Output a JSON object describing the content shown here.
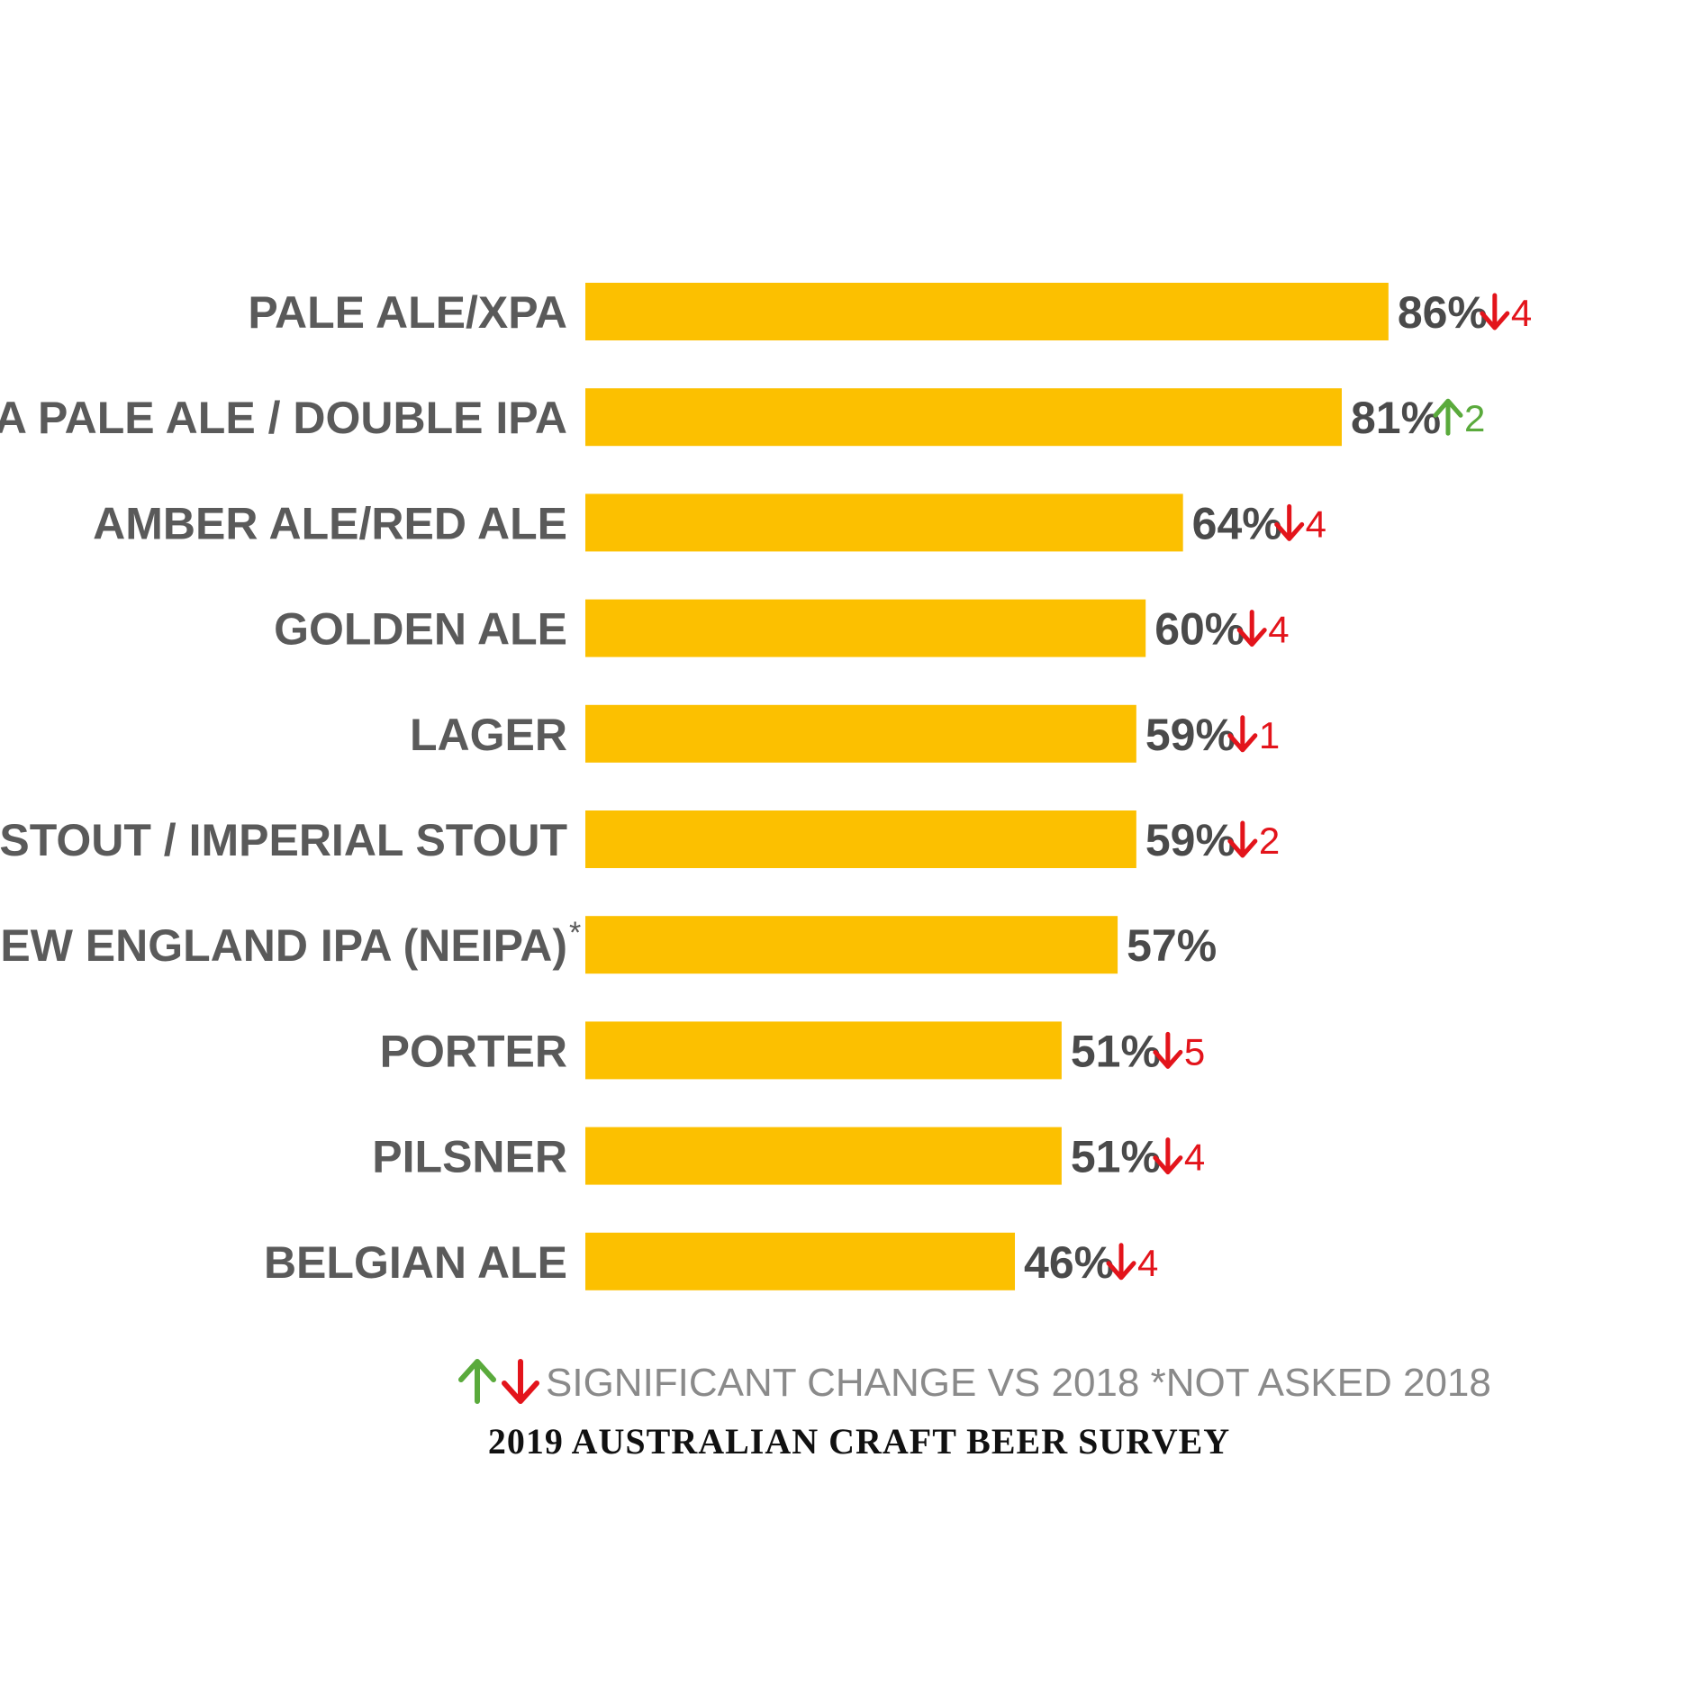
{
  "chart_data": {
    "type": "bar",
    "orientation": "horizontal",
    "categories": [
      "PALE ALE/XPA",
      "INDIA PALE ALE / DOUBLE IPA",
      "AMBER ALE/RED ALE",
      "GOLDEN ALE",
      "LAGER",
      "STOUT / IMPERIAL STOUT",
      "NEW ENGLAND IPA (NEIPA)",
      "PORTER",
      "PILSNER",
      "BELGIAN ALE"
    ],
    "values": [
      86,
      81,
      64,
      60,
      59,
      59,
      57,
      51,
      51,
      46
    ],
    "value_labels": [
      "86%",
      "81%",
      "64%",
      "60%",
      "59%",
      "59%",
      "57%",
      "51%",
      "51%",
      "46%"
    ],
    "changes": [
      {
        "direction": "down",
        "amount": "4"
      },
      {
        "direction": "up",
        "amount": "2"
      },
      {
        "direction": "down",
        "amount": "4"
      },
      {
        "direction": "down",
        "amount": "4"
      },
      {
        "direction": "down",
        "amount": "1"
      },
      {
        "direction": "down",
        "amount": "2"
      },
      null,
      {
        "direction": "down",
        "amount": "5"
      },
      {
        "direction": "down",
        "amount": "4"
      },
      {
        "direction": "down",
        "amount": "4"
      }
    ],
    "asterisk_marks": [
      "",
      "",
      "",
      "",
      "",
      "",
      "*",
      "",
      "",
      ""
    ],
    "xlim": [
      0,
      100
    ],
    "grid": false,
    "legend_text": "SIGNIFICANT CHANGE VS 2018 *NOT ASKED 2018",
    "source": "2019 AUSTRALIAN CRAFT BEER SURVEY"
  },
  "colors": {
    "bar": "#FCC000",
    "category_text": "#5a5a5a",
    "value_text": "#4a4a4a",
    "up": "#5aaa3c",
    "down": "#e3141b",
    "legend_text": "#8a8a8a",
    "source_text": "#111111"
  },
  "icons": {
    "up": "up-arrow-icon",
    "down": "down-arrow-icon"
  }
}
